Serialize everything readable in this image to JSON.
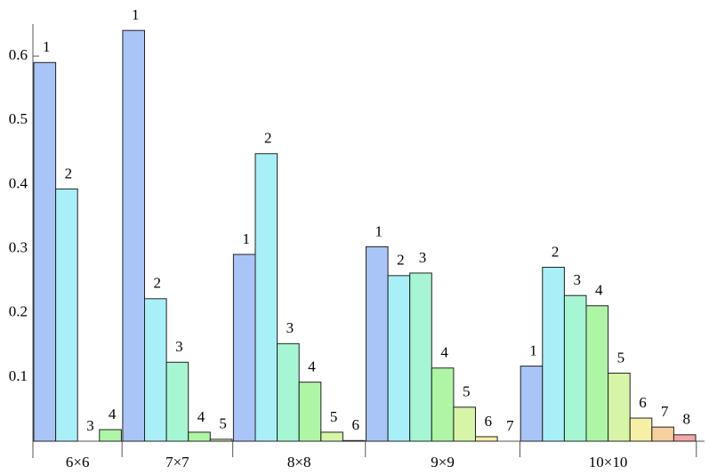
{
  "chart_data": {
    "type": "bar",
    "categories": [
      "6×6",
      "7×7",
      "8×8",
      "9×9",
      "10×10"
    ],
    "series": [
      {
        "name": "1",
        "color": "#a9c4f7",
        "values": [
          0.59,
          0.64,
          0.291,
          0.303,
          0.117
        ]
      },
      {
        "name": "2",
        "color": "#a8eff7",
        "values": [
          0.393,
          0.222,
          0.448,
          0.258,
          0.271
        ]
      },
      {
        "name": "3",
        "color": "#a6f5d3",
        "values": [
          0,
          0.123,
          0.152,
          0.262,
          0.227
        ]
      },
      {
        "name": "4",
        "color": "#aef5a6",
        "values": [
          0.018,
          0.014,
          0.092,
          0.114,
          0.211
        ]
      },
      {
        "name": "5",
        "color": "#d6f5a6",
        "values": [
          null,
          0.003,
          0.014,
          0.053,
          0.106
        ]
      },
      {
        "name": "6",
        "color": "#f5f0a6",
        "values": [
          null,
          null,
          0.001,
          0.007,
          0.036
        ]
      },
      {
        "name": "7",
        "color": "#f7cfa0",
        "values": [
          null,
          null,
          null,
          0,
          0.022
        ]
      },
      {
        "name": "8",
        "color": "#f3a7a7",
        "values": [
          null,
          null,
          null,
          null,
          0.01
        ]
      }
    ],
    "ylim": [
      0,
      0.65
    ],
    "yticks": [
      0.1,
      0.2,
      0.3,
      0.4,
      0.5,
      0.6
    ]
  }
}
